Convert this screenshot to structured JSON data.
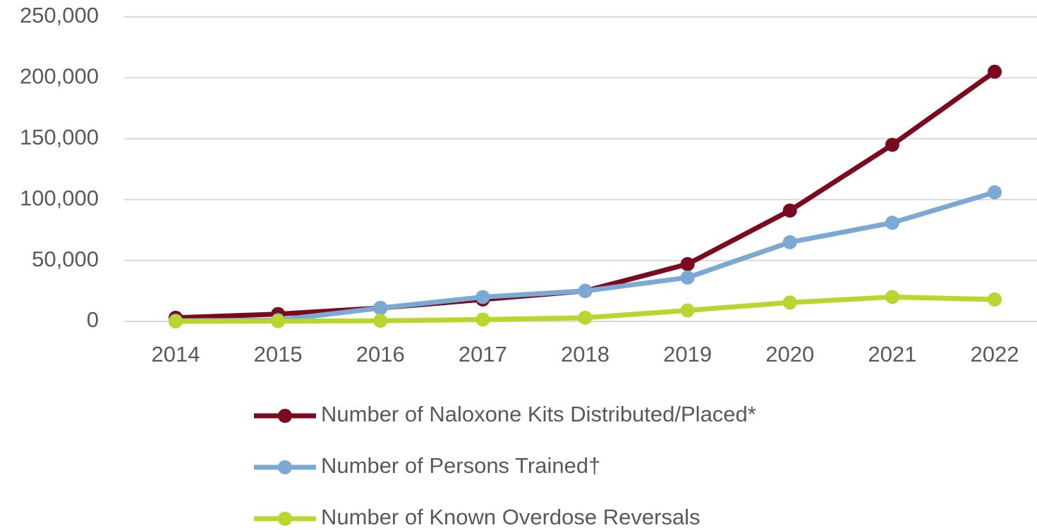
{
  "chart_data": {
    "type": "line",
    "categories": [
      "2014",
      "2015",
      "2016",
      "2017",
      "2018",
      "2019",
      "2020",
      "2021",
      "2022"
    ],
    "series": [
      {
        "name": "Number of Naloxone Kits Distributed/Placed*",
        "color": "#7b0a1e",
        "values": [
          3000,
          6000,
          11000,
          18000,
          25000,
          47000,
          91000,
          145000,
          205000
        ]
      },
      {
        "name": "Number of Persons Trained†",
        "color": "#7aaad3",
        "values": [
          500,
          1000,
          11000,
          20000,
          25000,
          36000,
          65000,
          81000,
          106000
        ]
      },
      {
        "name": "Number of Known Overdose Reversals",
        "color": "#b8d62e",
        "values": [
          0,
          200,
          500,
          1500,
          3000,
          9000,
          15500,
          20000,
          18000
        ]
      }
    ],
    "ylim": [
      0,
      250000
    ],
    "yticks": [
      0,
      {
        "value": 50000,
        "label": "50,000"
      },
      {
        "value": 100000,
        "label": "100,000"
      },
      {
        "value": 150000,
        "label": "150,000"
      },
      {
        "value": 200000,
        "label": "200,000"
      },
      {
        "value": 250000,
        "label": "250,000"
      }
    ],
    "grid": true,
    "legend": "bottom"
  }
}
